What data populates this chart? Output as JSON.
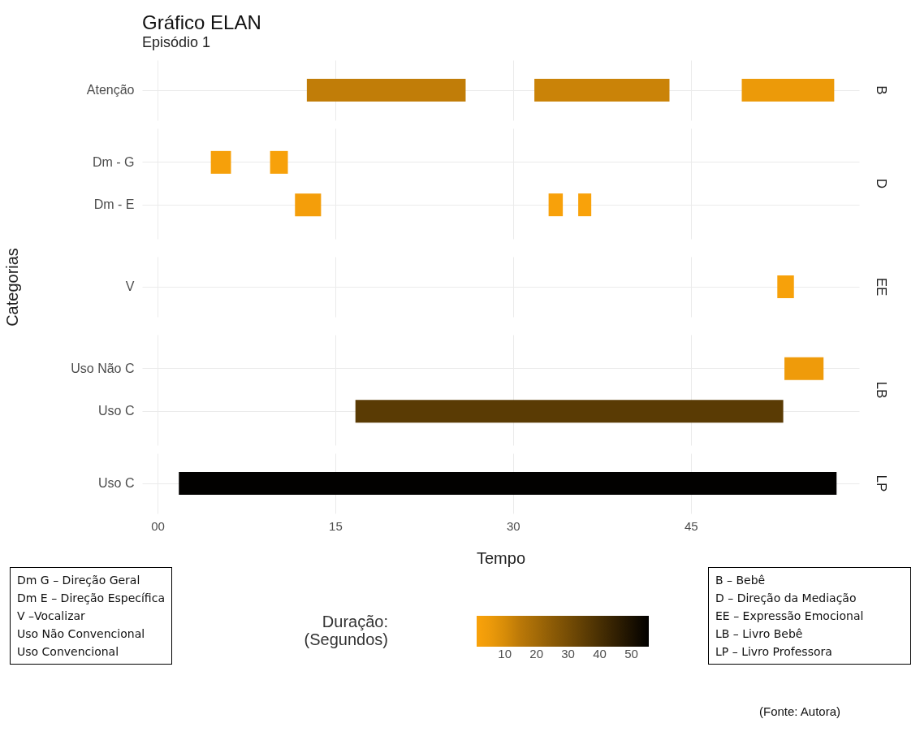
{
  "chart_data": [
    {
      "type": "bar",
      "orientation": "horizontal",
      "title": "Gráfico ELAN",
      "subtitle": "Episódio 1",
      "y2label": "B",
      "categories": [
        "Atenção"
      ],
      "series": [
        {
          "base": [
            12.6
          ],
          "values": [
            13.4
          ],
          "colors": [
            "#c17d08"
          ]
        },
        {
          "base": [
            31.8
          ],
          "values": [
            11.4
          ],
          "colors": [
            "#ca8308"
          ]
        },
        {
          "base": [
            49.3
          ],
          "values": [
            7.8
          ],
          "colors": [
            "#ec9a09"
          ]
        }
      ],
      "xlim": [
        -1.3,
        59.2
      ],
      "grid": true,
      "tick_labels": "y"
    },
    {
      "type": "bar",
      "orientation": "horizontal",
      "y2label": "D",
      "categories": [
        "Dm - G",
        "Dm - E"
      ],
      "series": [
        {
          "base": [
            4.5,
            11.6
          ],
          "values": [
            1.7,
            2.2
          ],
          "colors": [
            "#f6a00a",
            "#f49e0a"
          ]
        },
        {
          "base": [
            9.5,
            33.0
          ],
          "values": [
            1.5,
            1.2
          ],
          "colors": [
            "#f7a10a",
            "#f8a10a"
          ]
        },
        {
          "base": [
            null,
            35.5
          ],
          "values": [
            null,
            1.1
          ],
          "colors": [
            null,
            "#f9a20a"
          ]
        }
      ],
      "xlim": [
        -1.3,
        59.2
      ],
      "grid": true,
      "tick_labels": "y"
    },
    {
      "type": "bar",
      "orientation": "horizontal",
      "y2label": "EE",
      "ylabel": "Categorias",
      "categories": [
        "V"
      ],
      "series": [
        {
          "base": [
            52.3
          ],
          "values": [
            1.4
          ],
          "colors": [
            "#f7a10a"
          ]
        }
      ],
      "xlim": [
        -1.3,
        59.2
      ],
      "grid": true,
      "tick_labels": "y"
    },
    {
      "type": "bar",
      "orientation": "horizontal",
      "y2label": "LB",
      "categories": [
        "Uso Não C",
        "Uso C"
      ],
      "series": [
        {
          "base": [
            52.9,
            16.7
          ],
          "values": [
            3.3,
            36.1
          ],
          "colors": [
            "#ef9b0a",
            "#5a3b04"
          ]
        }
      ],
      "xlim": [
        -1.3,
        59.2
      ],
      "grid": true,
      "tick_labels": "y"
    },
    {
      "type": "bar",
      "orientation": "horizontal",
      "y2label": "LP",
      "xlabel": "Tempo",
      "clabel": "Duração:\n(Segundos)",
      "clim": [
        1.1,
        55.5
      ],
      "cticks": [
        10,
        20,
        30,
        40,
        50
      ],
      "categories": [
        "Uso C"
      ],
      "series": [
        {
          "base": [
            1.8
          ],
          "values": [
            55.5
          ],
          "colors": [
            "#020100"
          ]
        }
      ],
      "xlim": [
        -1.3,
        59.2
      ],
      "xticks": [
        {
          "value": 0,
          "label": "00"
        },
        15,
        30,
        45
      ],
      "grid": true,
      "annotations": [
        "Dm G – Direção Geral\nDm E – Direção Específica\nV –Vocalizar\nUso Não Convencional\nUso Convencional",
        "B – Bebê\nD – Direção da Mediação\nEE – Expressão Emocional\nLB – Livro Bebê\nLP – Livro Professora",
        "(Fonte: Autora)"
      ]
    }
  ]
}
